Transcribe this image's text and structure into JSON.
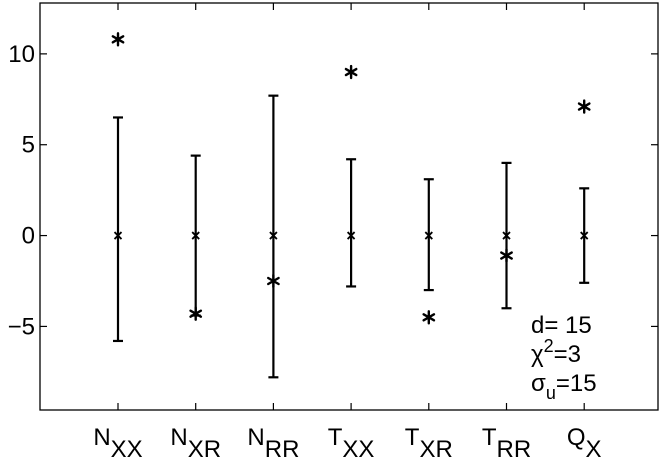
{
  "chart_data": {
    "type": "errorbar",
    "categories": [
      {
        "main": "N",
        "sub": "XX"
      },
      {
        "main": "N",
        "sub": "XR"
      },
      {
        "main": "N",
        "sub": "RR"
      },
      {
        "main": "T",
        "sub": "XX"
      },
      {
        "main": "T",
        "sub": "XR"
      },
      {
        "main": "T",
        "sub": "RR"
      },
      {
        "main": "Q",
        "sub": "X"
      }
    ],
    "series": [
      {
        "marker": "x",
        "center": [
          0,
          0,
          0,
          0,
          0,
          0,
          0
        ],
        "lower": [
          -5.8,
          -4.4,
          -7.8,
          -2.8,
          -3.0,
          -4.0,
          -2.6
        ],
        "upper": [
          6.5,
          4.4,
          7.7,
          4.2,
          3.1,
          4.0,
          2.6
        ]
      },
      {
        "marker": "asterisk",
        "values": [
          10.8,
          -4.3,
          -2.5,
          9.0,
          -4.5,
          -1.1,
          7.1
        ]
      }
    ],
    "yticks": [
      -5,
      0,
      5,
      10
    ],
    "ytick_labels": [
      "−5",
      "0",
      "5",
      "10"
    ],
    "ylim": [
      -9.6,
      12.8
    ],
    "xlabel": "",
    "ylabel": "",
    "title": "",
    "grid": false,
    "annotation": [
      {
        "text": "d= 15"
      },
      {
        "text": "χ",
        "sup": "2",
        "after": "=3"
      },
      {
        "text": "σ",
        "sub": "u",
        "after": "=15"
      }
    ]
  }
}
